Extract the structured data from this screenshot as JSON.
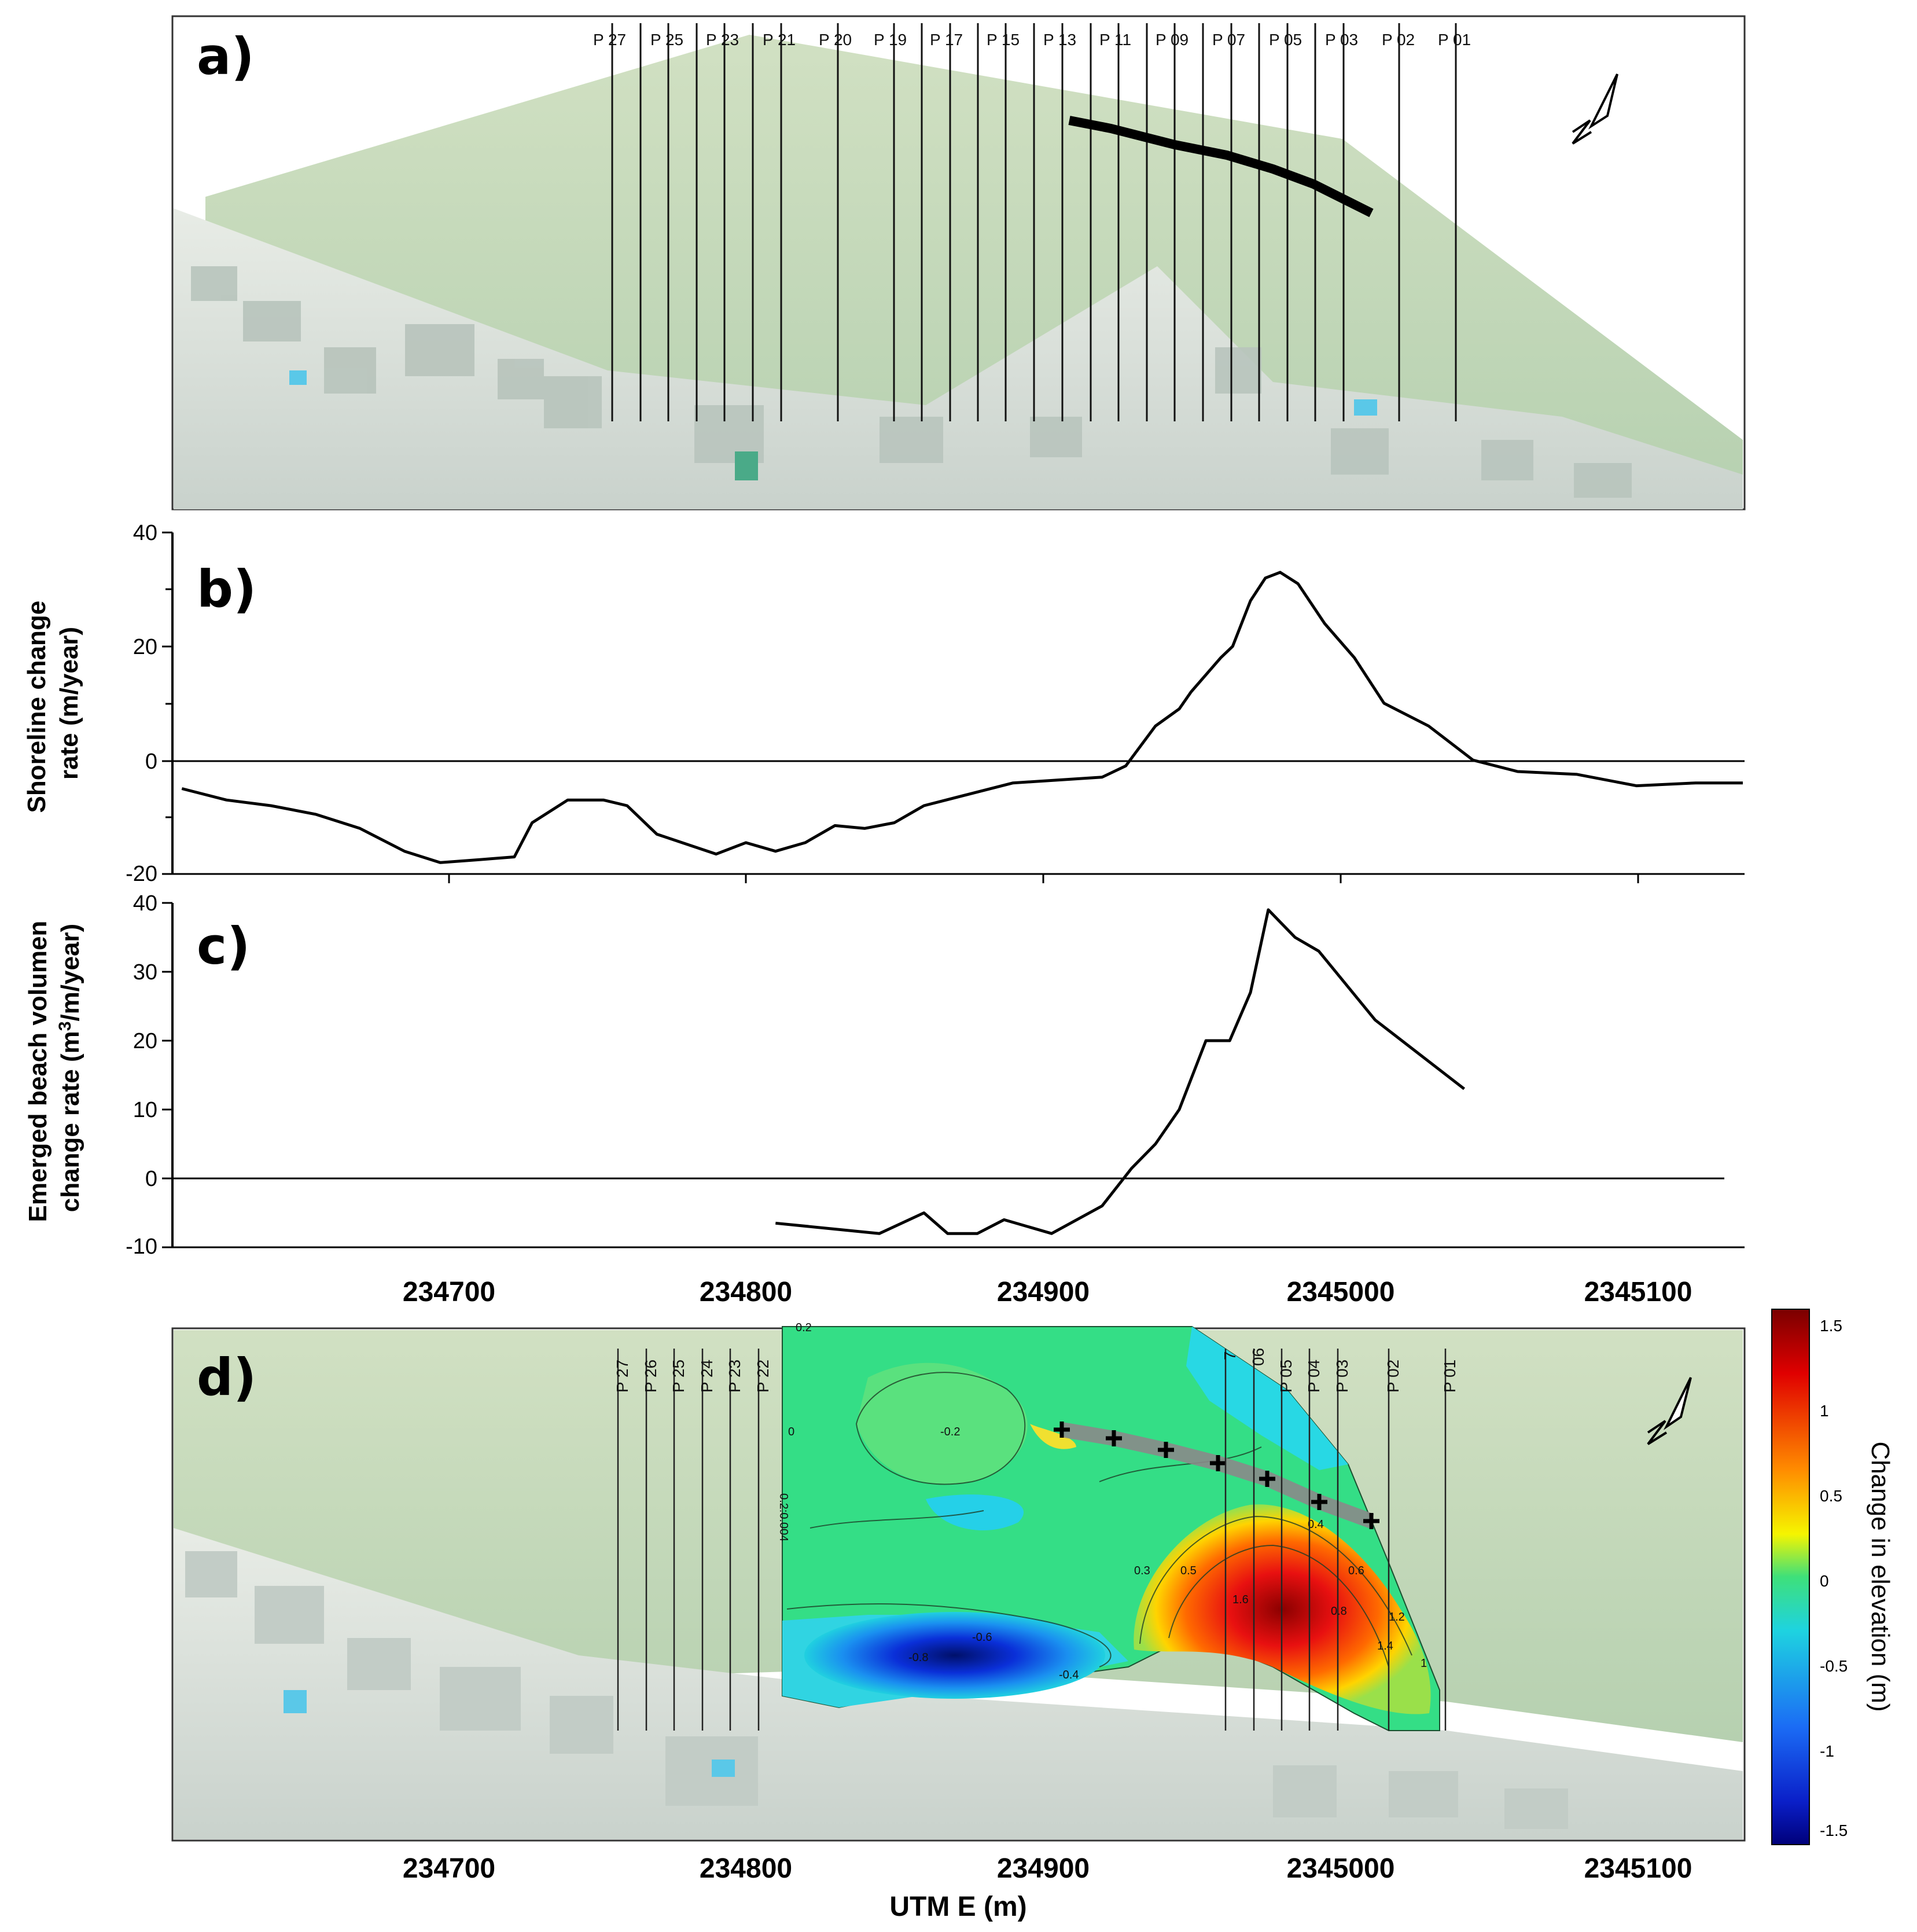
{
  "chart_data": [
    {
      "panel": "a)",
      "type": "map",
      "profiles": [
        "P 27",
        "P 25",
        "P 23",
        "P 21",
        "P 20",
        "P 19",
        "P 17",
        "P 15",
        "P 13",
        "P 11",
        "P 09",
        "P 07",
        "P 05",
        "P 03",
        "P 02",
        "P 01"
      ]
    },
    {
      "panel": "b)",
      "type": "line",
      "ylabel": "Shoreline change rate (m/year)",
      "ylim": [
        -20,
        40
      ],
      "yticks": [
        -20,
        0,
        20,
        40
      ],
      "xlim": [
        234610,
        2345140
      ],
      "x": [
        234610,
        234625,
        234640,
        234655,
        234670,
        234685,
        234697,
        234710,
        234722,
        234728,
        234740,
        234752,
        234760,
        234770,
        234790,
        234800,
        234810,
        234820,
        234830,
        234840,
        234850,
        234860,
        234875,
        234890,
        234905,
        234920,
        234928,
        234938,
        234946,
        234950,
        234960,
        234964,
        234970,
        234975,
        234980,
        234986,
        234995,
        235005,
        235015,
        235030,
        235045,
        235060,
        235080,
        2345100,
        235120,
        2345140
      ],
      "y": [
        -5,
        -7,
        -8,
        -9.5,
        -12,
        -16,
        -18,
        -17.5,
        -17,
        -11,
        -7,
        -7,
        -8,
        -13,
        -16.5,
        -14.5,
        -16,
        -14.5,
        -11.5,
        -12,
        -11,
        -8,
        -6,
        -4,
        -3.5,
        -3,
        -1,
        6,
        9,
        12,
        18,
        20,
        28,
        32,
        33,
        31,
        24,
        18,
        10,
        6,
        0,
        -2,
        -2.5,
        -4.5,
        -4,
        -4
      ]
    },
    {
      "panel": "c)",
      "type": "line",
      "ylabel": "Emerged beach volumen change rate (m³/m/year)",
      "ylim": [
        -10,
        40
      ],
      "yticks": [
        -10,
        0,
        10,
        20,
        30,
        40
      ],
      "x": [
        234810,
        234845,
        234860,
        234868,
        234878,
        234887,
        234903,
        234920,
        234930,
        234938,
        234946,
        234955,
        234963,
        234970,
        234976,
        234985,
        234993,
        235012,
        235042
      ],
      "y": [
        -6.5,
        -8,
        -5,
        -8,
        -8,
        -6,
        -8,
        -4,
        1.5,
        5,
        10,
        20,
        20,
        27,
        39,
        35,
        33,
        23,
        13
      ]
    },
    {
      "panel": "d)",
      "type": "heatmap",
      "xlabel": "UTM E (m)",
      "xticks": [
        "234700",
        "234800",
        "234900",
        "2345000",
        "2345100"
      ],
      "profiles": [
        "P 27",
        "P 26",
        "P 25",
        "P 24",
        "P 23",
        "P 22",
        "7",
        "06",
        "P 05",
        "P 04",
        "P 03",
        "P 02",
        "P 01"
      ],
      "colorbar": {
        "title": "Change in elevation (m)",
        "ticks": [
          "1.5",
          "1",
          "0.5",
          "0",
          "-0.5",
          "-1",
          "-1.5"
        ],
        "range": [
          -1.5,
          1.5
        ]
      },
      "contour_labels": [
        "0.2",
        "-0.2",
        "0",
        "0.4",
        "0.6",
        "0.8",
        "1.2",
        "1.4",
        "1.6",
        "-0.8",
        "-0.4",
        "-0.6",
        "0.2:0.004",
        "0.3",
        "0.5",
        "1"
      ]
    }
  ]
}
